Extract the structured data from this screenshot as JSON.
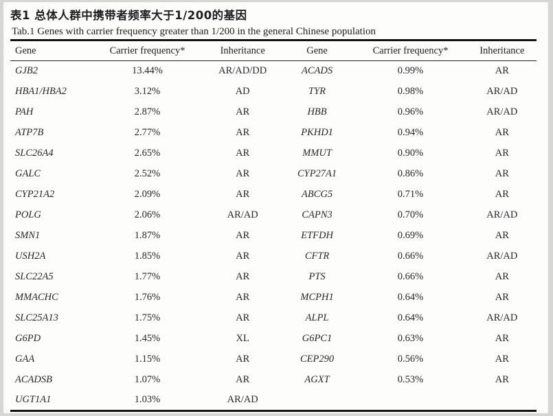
{
  "table": {
    "title_zh": "表1 总体人群中携带者频率大于1/200的基因",
    "title_en": "Tab.1  Genes with carrier frequency greater than 1/200 in the general Chinese population",
    "columns": {
      "gene_left": "Gene",
      "freq_left": "Carrier frequency*",
      "inh_left": "Inheritance",
      "gene_right": "Gene",
      "freq_right": "Carrier frequency*",
      "inh_right": "Inheritance"
    },
    "rows": [
      {
        "gene_left": "GJB2",
        "freq_left": "13.44%",
        "inh_left": "AR/AD/DD",
        "gene_right": "ACADS",
        "freq_right": "0.99%",
        "inh_right": "AR"
      },
      {
        "gene_left": "HBA1/HBA2",
        "freq_left": "3.12%",
        "inh_left": "AD",
        "gene_right": "TYR",
        "freq_right": "0.98%",
        "inh_right": "AR/AD"
      },
      {
        "gene_left": "PAH",
        "freq_left": "2.87%",
        "inh_left": "AR",
        "gene_right": "HBB",
        "freq_right": "0.96%",
        "inh_right": "AR/AD"
      },
      {
        "gene_left": "ATP7B",
        "freq_left": "2.77%",
        "inh_left": "AR",
        "gene_right": "PKHD1",
        "freq_right": "0.94%",
        "inh_right": "AR"
      },
      {
        "gene_left": "SLC26A4",
        "freq_left": "2.65%",
        "inh_left": "AR",
        "gene_right": "MMUT",
        "freq_right": "0.90%",
        "inh_right": "AR"
      },
      {
        "gene_left": "GALC",
        "freq_left": "2.52%",
        "inh_left": "AR",
        "gene_right": "CYP27A1",
        "freq_right": "0.86%",
        "inh_right": "AR"
      },
      {
        "gene_left": "CYP21A2",
        "freq_left": "2.09%",
        "inh_left": "AR",
        "gene_right": "ABCG5",
        "freq_right": "0.71%",
        "inh_right": "AR"
      },
      {
        "gene_left": "POLG",
        "freq_left": "2.06%",
        "inh_left": "AR/AD",
        "gene_right": "CAPN3",
        "freq_right": "0.70%",
        "inh_right": "AR/AD"
      },
      {
        "gene_left": "SMN1",
        "freq_left": "1.87%",
        "inh_left": "AR",
        "gene_right": "ETFDH",
        "freq_right": "0.69%",
        "inh_right": "AR"
      },
      {
        "gene_left": "USH2A",
        "freq_left": "1.85%",
        "inh_left": "AR",
        "gene_right": "CFTR",
        "freq_right": "0.66%",
        "inh_right": "AR/AD"
      },
      {
        "gene_left": "SLC22A5",
        "freq_left": "1.77%",
        "inh_left": "AR",
        "gene_right": "PTS",
        "freq_right": "0.66%",
        "inh_right": "AR"
      },
      {
        "gene_left": "MMACHC",
        "freq_left": "1.76%",
        "inh_left": "AR",
        "gene_right": "MCPH1",
        "freq_right": "0.64%",
        "inh_right": "AR"
      },
      {
        "gene_left": "SLC25A13",
        "freq_left": "1.75%",
        "inh_left": "AR",
        "gene_right": "ALPL",
        "freq_right": "0.64%",
        "inh_right": "AR/AD"
      },
      {
        "gene_left": "G6PD",
        "freq_left": "1.45%",
        "inh_left": "XL",
        "gene_right": "G6PC1",
        "freq_right": "0.63%",
        "inh_right": "AR"
      },
      {
        "gene_left": "GAA",
        "freq_left": "1.15%",
        "inh_left": "AR",
        "gene_right": "CEP290",
        "freq_right": "0.56%",
        "inh_right": "AR"
      },
      {
        "gene_left": "ACADSB",
        "freq_left": "1.07%",
        "inh_left": "AR",
        "gene_right": "AGXT",
        "freq_right": "0.53%",
        "inh_right": "AR"
      },
      {
        "gene_left": "UGT1A1",
        "freq_left": "1.03%",
        "inh_left": "AR/AD",
        "gene_right": "",
        "freq_right": "",
        "inh_right": ""
      }
    ]
  }
}
